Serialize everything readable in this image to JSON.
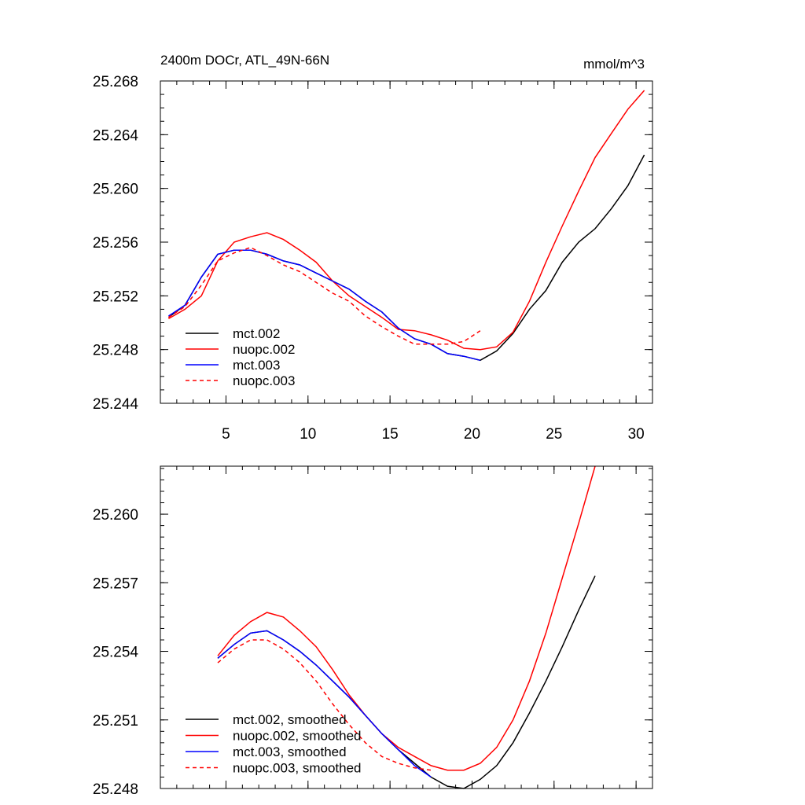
{
  "chart_data": [
    {
      "type": "line",
      "title": "2400m DOCr, ATL_49N-66N",
      "units": "mmol/m^3",
      "xlim": [
        1,
        31
      ],
      "ylim": [
        25.244,
        25.268
      ],
      "xticks": [
        5,
        10,
        15,
        20,
        25,
        30
      ],
      "xtick_labels": [
        "5",
        "10",
        "15",
        "20",
        "25",
        "30"
      ],
      "yticks": [
        25.244,
        25.248,
        25.252,
        25.256,
        25.26,
        25.264,
        25.268
      ],
      "ytick_labels": [
        "25.244",
        "25.248",
        "25.252",
        "25.256",
        "25.260",
        "25.264",
        "25.268"
      ],
      "legend_position": "bottom-left",
      "series": [
        {
          "name": "mct.002",
          "color": "#000000",
          "dash": "solid",
          "x": [
            1.5,
            2.5,
            3.5,
            4.5,
            5.5,
            6.5,
            7.5,
            8.5,
            9.5,
            10.5,
            11.5,
            12.5,
            13.5,
            14.5,
            15.5,
            16.5,
            17.5,
            18.5,
            19.5,
            20.5,
            21.5,
            22.5,
            23.5,
            24.5,
            25.5,
            26.5,
            27.5,
            28.5,
            29.5,
            30.5
          ],
          "values": [
            25.2504,
            25.2513,
            25.2534,
            25.2551,
            25.2554,
            25.2554,
            25.2551,
            25.2546,
            25.2543,
            25.2537,
            25.2531,
            25.2525,
            25.2516,
            25.2508,
            25.2496,
            25.2488,
            25.2484,
            25.2477,
            25.2475,
            25.2472,
            25.2479,
            25.2492,
            25.251,
            25.2524,
            25.2545,
            25.256,
            25.257,
            25.2585,
            25.2602,
            25.2625
          ]
        },
        {
          "name": "nuopc.002",
          "color": "#ff0000",
          "dash": "solid",
          "x": [
            1.5,
            2.5,
            3.5,
            4.5,
            5.5,
            6.5,
            7.5,
            8.5,
            9.5,
            10.5,
            11.5,
            12.5,
            13.5,
            14.5,
            15.5,
            16.5,
            17.5,
            18.5,
            19.5,
            20.5,
            21.5,
            22.5,
            23.5,
            24.5,
            25.5,
            26.5,
            27.5,
            28.5,
            29.5,
            30.5
          ],
          "values": [
            25.2503,
            25.251,
            25.252,
            25.2546,
            25.256,
            25.2564,
            25.2567,
            25.2562,
            25.2554,
            25.2545,
            25.2531,
            25.252,
            25.2512,
            25.2504,
            25.2495,
            25.2494,
            25.2491,
            25.2487,
            25.2481,
            25.248,
            25.2482,
            25.2493,
            25.2516,
            25.2545,
            25.2572,
            25.2598,
            25.2623,
            25.2641,
            25.2659,
            25.2673
          ]
        },
        {
          "name": "mct.003",
          "color": "#0000ff",
          "dash": "solid",
          "x": [
            1.5,
            2.5,
            3.5,
            4.5,
            5.5,
            6.5,
            7.5,
            8.5,
            9.5,
            10.5,
            11.5,
            12.5,
            13.5,
            14.5,
            15.5,
            16.5,
            17.5,
            18.5,
            19.5,
            20.5
          ],
          "values": [
            25.2505,
            25.2513,
            25.2534,
            25.2551,
            25.2554,
            25.2554,
            25.2551,
            25.2546,
            25.2543,
            25.2537,
            25.2531,
            25.2525,
            25.2516,
            25.2508,
            25.2496,
            25.2488,
            25.2484,
            25.2477,
            25.2475,
            25.2472
          ]
        },
        {
          "name": "nuopc.003",
          "color": "#ff0000",
          "dash": "dashed",
          "x": [
            1.5,
            2.5,
            3.5,
            4.5,
            5.5,
            6.5,
            7.5,
            8.5,
            9.5,
            10.5,
            11.5,
            12.5,
            13.5,
            14.5,
            15.5,
            16.5,
            17.5,
            18.5,
            19.5,
            20.5
          ],
          "values": [
            25.2504,
            25.2512,
            25.2528,
            25.2546,
            25.2552,
            25.2556,
            25.255,
            25.2543,
            25.2538,
            25.253,
            25.2522,
            25.2516,
            25.2505,
            25.2497,
            25.249,
            25.2484,
            25.2484,
            25.2484,
            25.2486,
            25.2494
          ]
        }
      ]
    },
    {
      "type": "line",
      "title": "",
      "xlim": [
        1,
        31
      ],
      "ylim": [
        25.248,
        25.2621
      ],
      "xticks": [
        5,
        10,
        15,
        20,
        25,
        30
      ],
      "yticks": [
        25.248,
        25.251,
        25.254,
        25.257,
        25.26
      ],
      "ytick_labels": [
        "25.248",
        "25.251",
        "25.254",
        "25.257",
        "25.260"
      ],
      "legend_position": "bottom-left",
      "series": [
        {
          "name": "mct.002, smoothed",
          "color": "#000000",
          "dash": "solid",
          "x": [
            4.5,
            5.5,
            6.5,
            7.5,
            8.5,
            9.5,
            10.5,
            11.5,
            12.5,
            13.5,
            14.5,
            15.5,
            16.5,
            17.5,
            18.5,
            19.5,
            20.5,
            21.5,
            22.5,
            23.5,
            24.5,
            25.5,
            26.5,
            27.5
          ],
          "values": [
            25.2537,
            25.2543,
            25.2548,
            25.2549,
            25.2545,
            25.254,
            25.2534,
            25.2527,
            25.252,
            25.2512,
            25.2504,
            25.2497,
            25.2491,
            25.2485,
            25.2481,
            25.248,
            25.2484,
            25.249,
            25.25,
            25.2513,
            25.2527,
            25.2542,
            25.2558,
            25.2573
          ]
        },
        {
          "name": "nuopc.002, smoothed",
          "color": "#ff0000",
          "dash": "solid",
          "x": [
            4.5,
            5.5,
            6.5,
            7.5,
            8.5,
            9.5,
            10.5,
            11.5,
            12.5,
            13.5,
            14.5,
            15.5,
            16.5,
            17.5,
            18.5,
            19.5,
            20.5,
            21.5,
            22.5,
            23.5,
            24.5,
            25.5,
            26.5,
            27.5
          ],
          "values": [
            25.2538,
            25.2547,
            25.2553,
            25.2557,
            25.2555,
            25.2549,
            25.2542,
            25.2532,
            25.2521,
            25.2512,
            25.2504,
            25.2498,
            25.2494,
            25.249,
            25.2488,
            25.2488,
            25.2491,
            25.2498,
            25.251,
            25.2527,
            25.2548,
            25.2572,
            25.2596,
            25.2621
          ]
        },
        {
          "name": "mct.003, smoothed",
          "color": "#0000ff",
          "dash": "solid",
          "x": [
            4.5,
            5.5,
            6.5,
            7.5,
            8.5,
            9.5,
            10.5,
            11.5,
            12.5,
            13.5,
            14.5,
            15.5,
            16.5,
            17.5
          ],
          "values": [
            25.2537,
            25.2543,
            25.2548,
            25.2549,
            25.2545,
            25.254,
            25.2534,
            25.2527,
            25.252,
            25.2512,
            25.2504,
            25.2497,
            25.249,
            25.2485
          ]
        },
        {
          "name": "nuopc.003, smoothed",
          "color": "#ff0000",
          "dash": "dashed",
          "x": [
            4.5,
            5.5,
            6.5,
            7.5,
            8.5,
            9.5,
            10.5,
            11.5,
            12.5,
            13.5,
            14.5,
            15.5,
            16.5,
            17.5
          ],
          "values": [
            25.2535,
            25.2541,
            25.2545,
            25.2545,
            25.2541,
            25.2535,
            25.2527,
            25.2517,
            25.2508,
            25.25,
            25.2494,
            25.2491,
            25.2489,
            25.2488
          ]
        }
      ]
    }
  ]
}
